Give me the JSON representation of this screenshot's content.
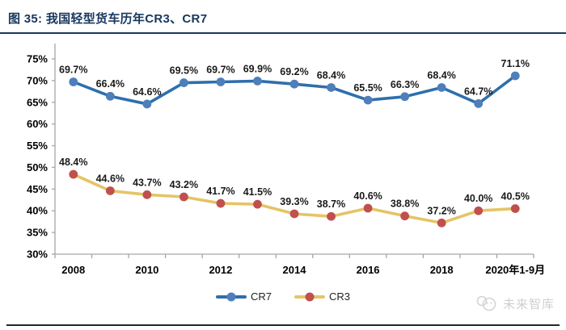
{
  "header": {
    "title": "图 35: 我国轻型货车历年CR3、CR7"
  },
  "chart_data": {
    "type": "line",
    "title": "我国轻型货车历年CR3、CR7",
    "x": [
      "2008",
      "2009",
      "2010",
      "2011",
      "2012",
      "2013",
      "2014",
      "2015",
      "2016",
      "2017",
      "2018",
      "2019",
      "2020年1-9月"
    ],
    "x_tick_indices": [
      0,
      2,
      4,
      6,
      8,
      10,
      12
    ],
    "series": [
      {
        "name": "CR7",
        "line_color": "#2E6FAE",
        "marker_color": "#4E7FBA",
        "values": [
          69.7,
          66.4,
          64.6,
          69.5,
          69.7,
          69.9,
          69.2,
          68.4,
          65.5,
          66.3,
          68.4,
          64.7,
          71.1
        ],
        "labels": [
          "69.7%",
          "66.4%",
          "64.6%",
          "69.5%",
          "69.7%",
          "69.9%",
          "69.2%",
          "68.4%",
          "65.5%",
          "66.3%",
          "68.4%",
          "64.7%",
          "71.1%"
        ]
      },
      {
        "name": "CR3",
        "line_color": "#E5C465",
        "marker_color": "#C0504D",
        "values": [
          48.4,
          44.6,
          43.7,
          43.2,
          41.7,
          41.5,
          39.3,
          38.7,
          40.6,
          38.8,
          37.2,
          40.0,
          40.5
        ],
        "labels": [
          "48.4%",
          "44.6%",
          "43.7%",
          "43.2%",
          "41.7%",
          "41.5%",
          "39.3%",
          "38.7%",
          "40.6%",
          "38.8%",
          "37.2%",
          "40.0%",
          "40.5%"
        ]
      }
    ],
    "ylim": [
      30,
      75
    ],
    "y_tick_step": 5,
    "y_tick_labels": [
      "30%",
      "35%",
      "40%",
      "45%",
      "50%",
      "55%",
      "60%",
      "65%",
      "70%",
      "75%"
    ],
    "grid": false,
    "legend_position": "bottom",
    "axis_color": "#A6A6A6",
    "label_color": "#1a1a1a"
  },
  "watermark": {
    "text": "未来智库"
  }
}
